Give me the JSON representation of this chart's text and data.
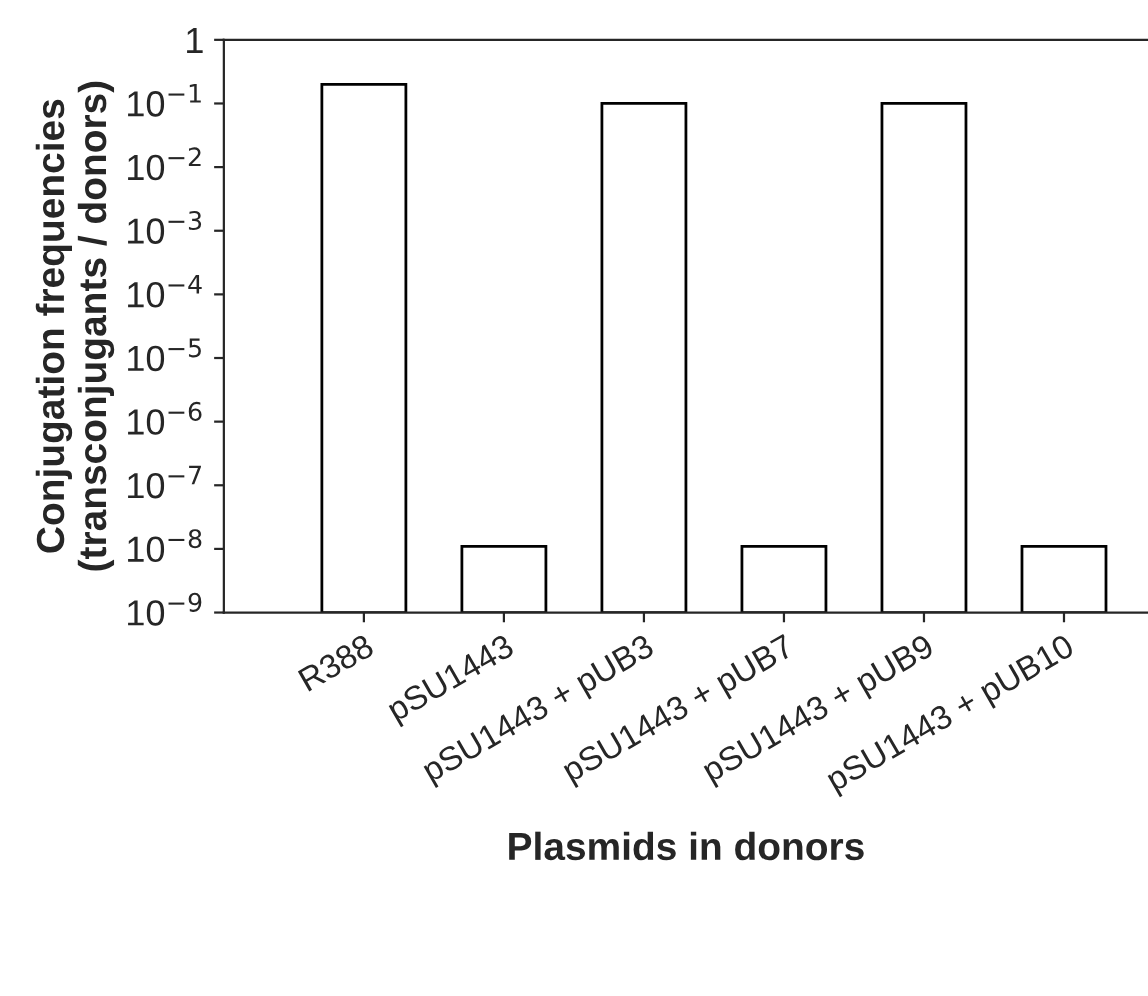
{
  "chart_data": {
    "type": "bar",
    "xlabel": "Plasmids in donors",
    "ylabel": "Conjugation frequencies\n(transconjugants / donors)",
    "categories": [
      "R388",
      "pSU1443",
      "pSU1443 + pUB3",
      "pSU1443 + pUB7",
      "pSU1443 + pUB9",
      "pSU1443 + pUB10"
    ],
    "values": [
      0.2,
      1e-08,
      0.1,
      1e-08,
      0.1,
      1e-08
    ],
    "color": "#ffffff",
    "log": true,
    "ylim": [
      1e-09,
      1
    ],
    "yticks": [
      {
        "value": 1e-09,
        "label": "10$^{−9}$"
      },
      {
        "value": 1e-08,
        "label": "10$^{−8}$"
      },
      {
        "value": 1e-07,
        "label": "10$^{−7}$"
      },
      {
        "value": 1e-06,
        "label": "10$^{−6}$"
      },
      {
        "value": 1e-05,
        "label": "10$^{−5}$"
      },
      {
        "value": 0.0001,
        "label": "10$^{−4}$"
      },
      {
        "value": 0.001,
        "label": "10$^{−3}$"
      },
      {
        "value": 0.01,
        "label": "10$^{−2}$"
      },
      {
        "value": 0.1,
        "label": "10$^{−1}$"
      },
      1
    ],
    "grid": false,
    "legend": false
  }
}
